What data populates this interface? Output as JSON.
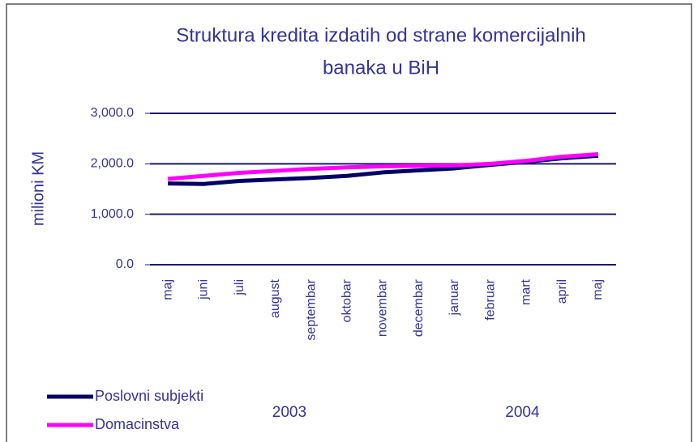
{
  "chart_data": {
    "type": "line",
    "title": [
      "Struktura kredita izdatih od strane komercijalnih",
      "banaka u BiH"
    ],
    "y_label": "milioni KM",
    "categories": [
      "maj",
      "juni",
      "juli",
      "august",
      "septembar",
      "oktobar",
      "novembar",
      "decembar",
      "januar",
      "februar",
      "mart",
      "april",
      "maj"
    ],
    "year_groups": [
      "2003",
      "2004"
    ],
    "series": [
      {
        "name": "Poslovni subjekti",
        "color": "#000066",
        "values": [
          1610,
          1600,
          1660,
          1690,
          1720,
          1760,
          1830,
          1870,
          1910,
          1980,
          2040,
          2110,
          2160
        ]
      },
      {
        "name": "Domacinstva",
        "color": "#ff00ff",
        "values": [
          1700,
          1760,
          1820,
          1860,
          1900,
          1930,
          1950,
          1960,
          1970,
          2000,
          2060,
          2140,
          2190
        ]
      }
    ],
    "ylim": [
      0,
      3000
    ],
    "yticks": [
      {
        "value": 0,
        "label": "0.0"
      },
      {
        "value": 1000,
        "label": "1,000.0"
      },
      {
        "value": 2000,
        "label": "2,000.0"
      },
      {
        "value": 3000,
        "label": "3,000.0"
      }
    ],
    "grid": true,
    "legend": "lower left"
  }
}
